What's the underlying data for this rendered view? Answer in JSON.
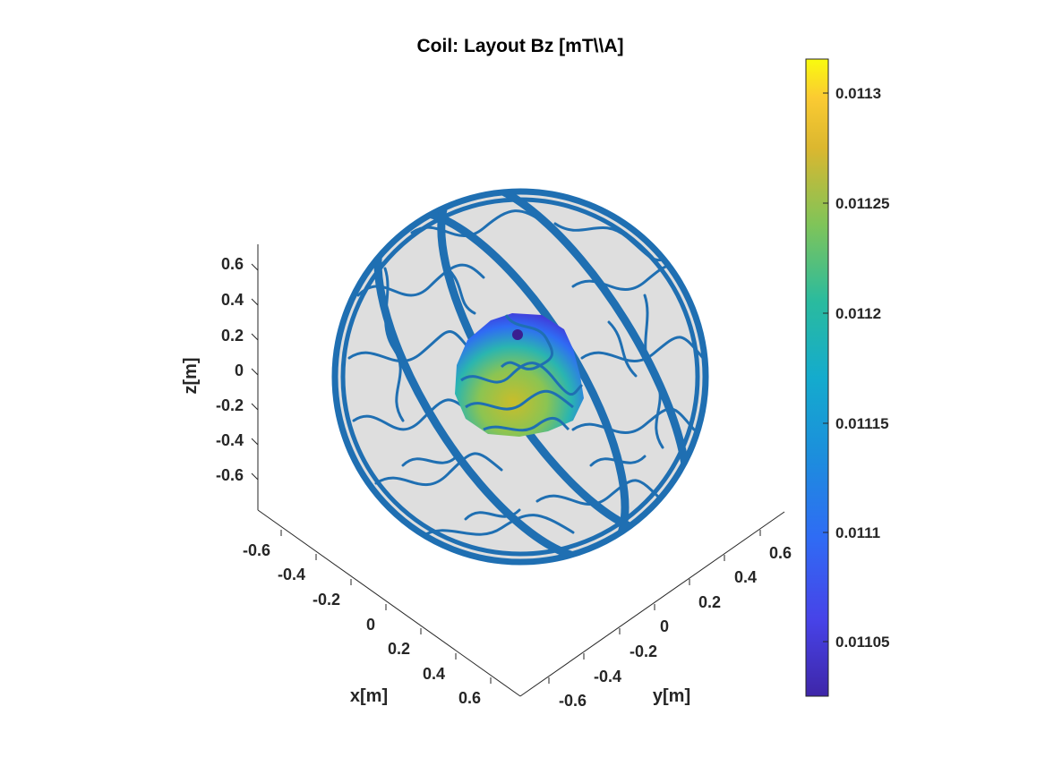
{
  "chart_data": {
    "type": "surface3d",
    "title": "Coil: Layout Bz [mT\\\\A]",
    "xlabel": "x[m]",
    "ylabel": "y[m]",
    "zlabel": "z[m]",
    "x_ticks": [
      "-0.6",
      "-0.4",
      "-0.2",
      "0",
      "0.2",
      "0.4",
      "0.6"
    ],
    "y_ticks": [
      "-0.6",
      "-0.4",
      "-0.2",
      "0",
      "0.2",
      "0.4",
      "0.6"
    ],
    "z_ticks": [
      "0.6",
      "0.4",
      "0.2",
      "0",
      "-0.2",
      "-0.4",
      "-0.6"
    ],
    "xlim": [
      -0.6,
      0.6
    ],
    "ylim": [
      -0.6,
      0.6
    ],
    "zlim": [
      -0.6,
      0.6
    ],
    "colorbar": {
      "ticks": [
        "0.0113",
        "0.01125",
        "0.0112",
        "0.01115",
        "0.0111",
        "0.01105"
      ],
      "range": [
        0.011025,
        0.011315
      ],
      "colormap": "parula"
    },
    "colors": {
      "coil_wire": "#1f6fb2",
      "sphere_surface": "#dcdcdc"
    }
  }
}
